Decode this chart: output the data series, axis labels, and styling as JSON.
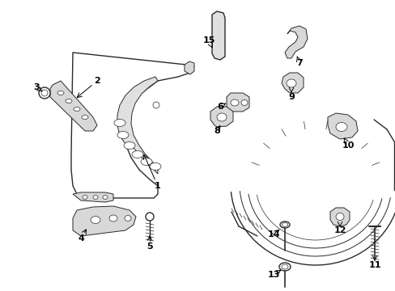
{
  "background_color": "#ffffff",
  "line_color": "#2a2a2a",
  "fig_w": 4.89,
  "fig_h": 3.6,
  "dpi": 100
}
